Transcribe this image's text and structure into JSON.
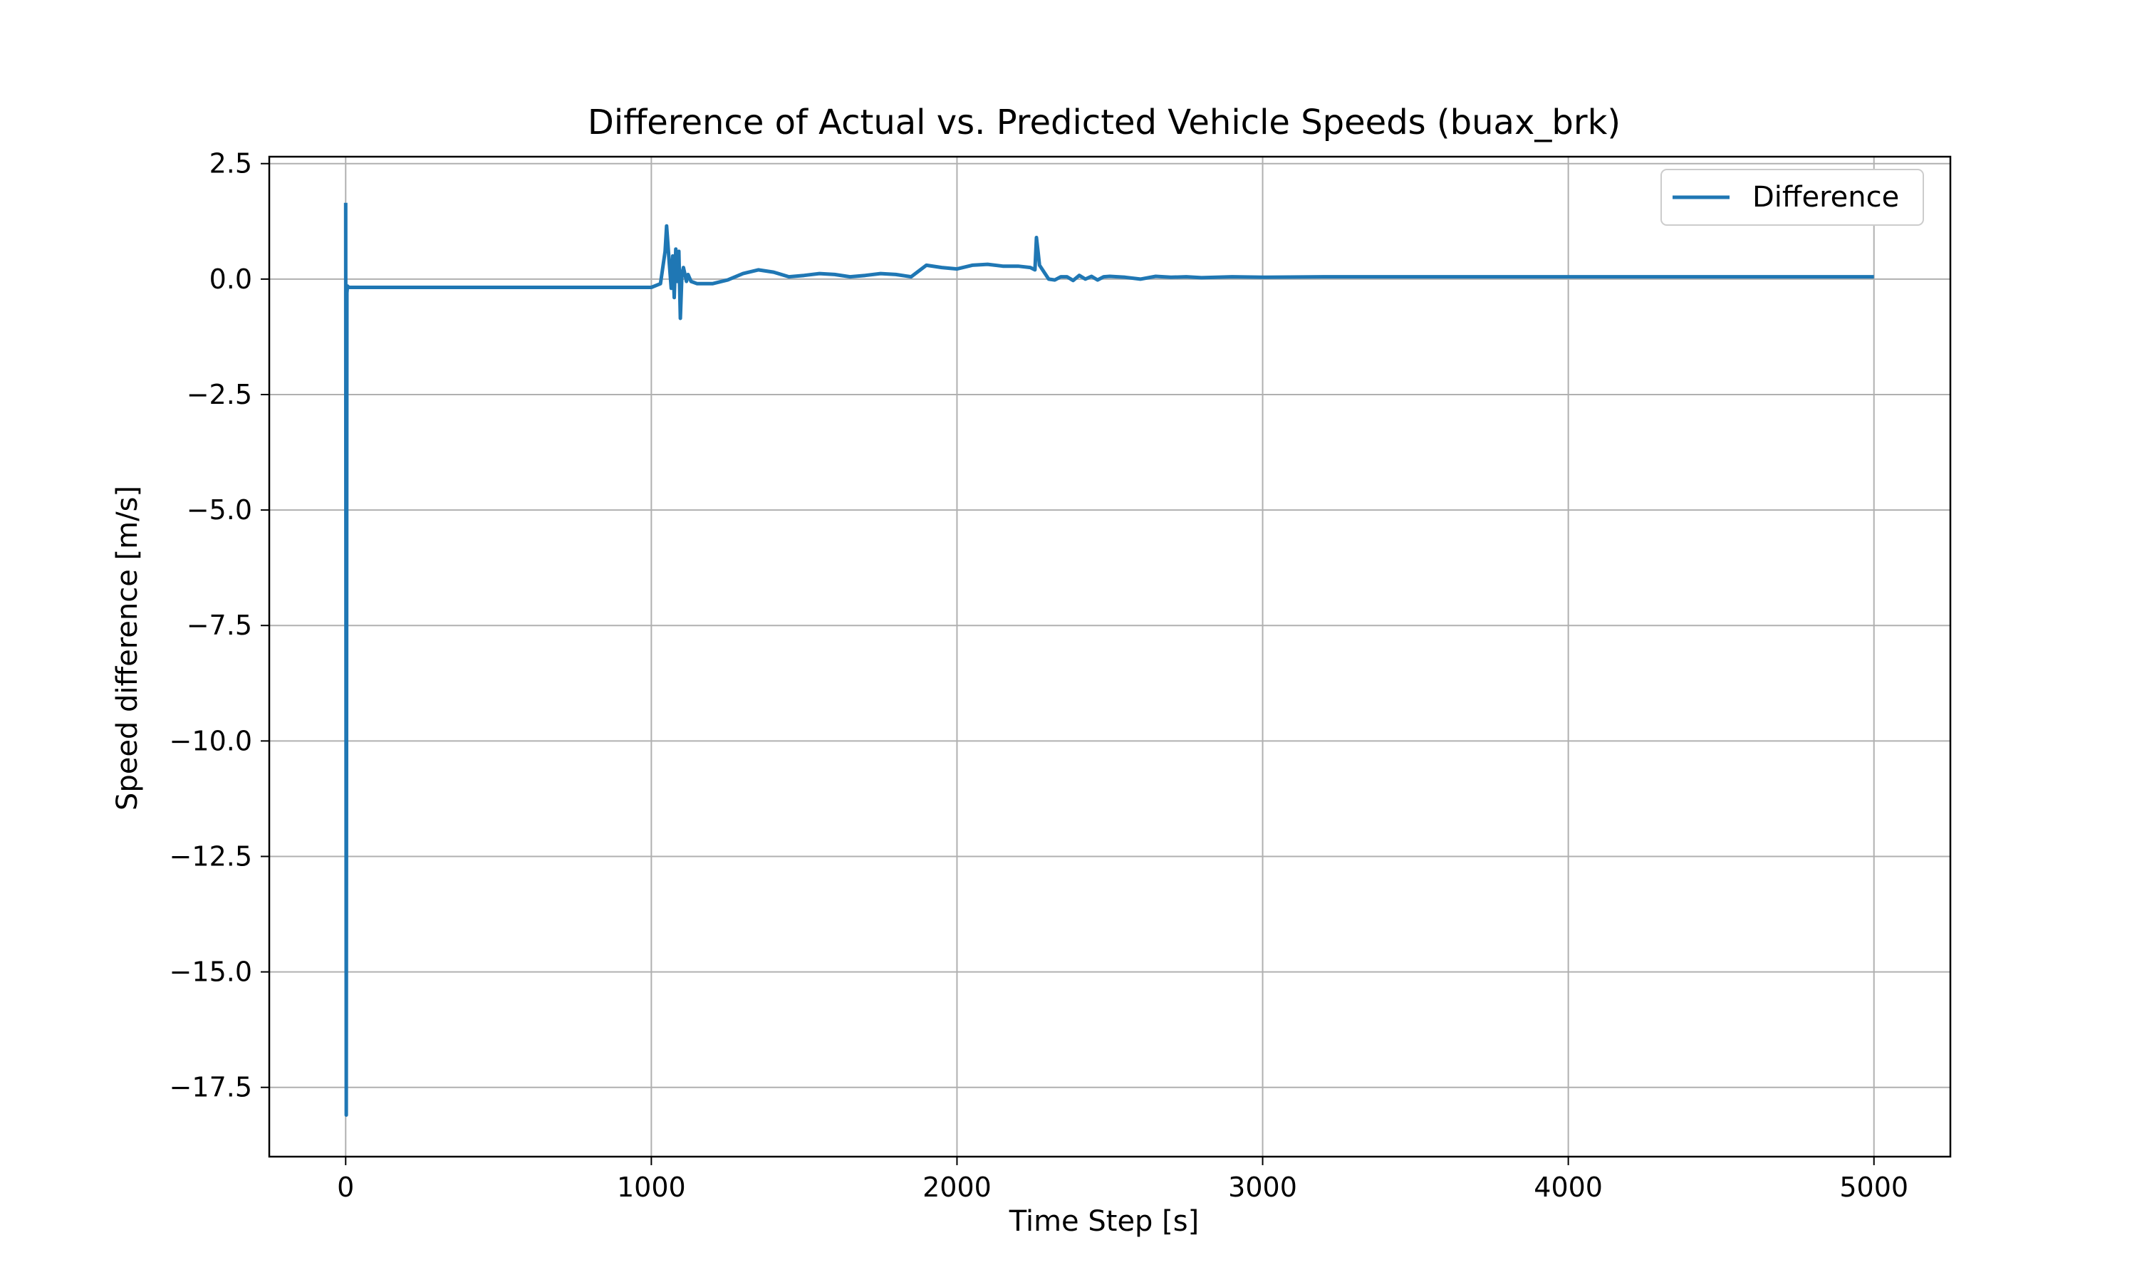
{
  "chart_data": {
    "type": "line",
    "title": "Difference of Actual vs. Predicted Vehicle Speeds (buax_brk)",
    "xlabel": "Time Step [s]",
    "ylabel": "Speed difference [m/s]",
    "xlim": [
      -250,
      5250
    ],
    "ylim": [
      -19.0,
      2.65
    ],
    "xticks": [
      0,
      1000,
      2000,
      3000,
      4000,
      5000
    ],
    "xtick_labels": [
      "0",
      "1000",
      "2000",
      "3000",
      "4000",
      "5000"
    ],
    "yticks": [
      2.5,
      0.0,
      -2.5,
      -5.0,
      -7.5,
      -10.0,
      -12.5,
      -15.0,
      -17.5
    ],
    "ytick_labels": [
      "2.5",
      "0.0",
      "−2.5",
      "−5.0",
      "−7.5",
      "−10.0",
      "−12.5",
      "−15.0",
      "−17.5"
    ],
    "grid": true,
    "legend": "top-right",
    "series": [
      {
        "name": "Difference",
        "color": "#1f77b4",
        "x": [
          0,
          2,
          4,
          6,
          10,
          20,
          60,
          200,
          400,
          600,
          800,
          1000,
          1030,
          1045,
          1050,
          1058,
          1065,
          1070,
          1075,
          1080,
          1085,
          1090,
          1095,
          1100,
          1105,
          1110,
          1115,
          1120,
          1130,
          1150,
          1200,
          1250,
          1300,
          1350,
          1400,
          1450,
          1500,
          1550,
          1600,
          1650,
          1700,
          1750,
          1800,
          1850,
          1900,
          1950,
          2000,
          2050,
          2100,
          2150,
          2200,
          2240,
          2255,
          2260,
          2265,
          2270,
          2280,
          2300,
          2320,
          2340,
          2360,
          2380,
          2400,
          2420,
          2440,
          2460,
          2480,
          2500,
          2550,
          2600,
          2650,
          2700,
          2750,
          2800,
          2900,
          3000,
          3200,
          3400,
          3600,
          3800,
          4000,
          4200,
          4400,
          4600,
          4800,
          5000
        ],
        "y": [
          1.65,
          -18.1,
          -0.3,
          -0.15,
          -0.18,
          -0.18,
          -0.18,
          -0.18,
          -0.18,
          -0.18,
          -0.18,
          -0.18,
          -0.1,
          0.6,
          1.15,
          0.4,
          -0.2,
          0.5,
          -0.4,
          0.65,
          -0.05,
          0.6,
          -0.85,
          0.1,
          0.25,
          0.1,
          -0.05,
          0.1,
          -0.05,
          -0.1,
          -0.1,
          -0.02,
          0.12,
          0.2,
          0.15,
          0.05,
          0.08,
          0.12,
          0.1,
          0.05,
          0.08,
          0.12,
          0.1,
          0.05,
          0.3,
          0.25,
          0.22,
          0.3,
          0.32,
          0.28,
          0.28,
          0.25,
          0.2,
          0.9,
          0.6,
          0.3,
          0.2,
          0.0,
          -0.02,
          0.05,
          0.05,
          -0.03,
          0.08,
          0.0,
          0.06,
          -0.02,
          0.05,
          0.06,
          0.04,
          0.0,
          0.06,
          0.04,
          0.05,
          0.03,
          0.05,
          0.04,
          0.05,
          0.05,
          0.05,
          0.05,
          0.05,
          0.05,
          0.05,
          0.05,
          0.05,
          0.05
        ]
      }
    ]
  }
}
